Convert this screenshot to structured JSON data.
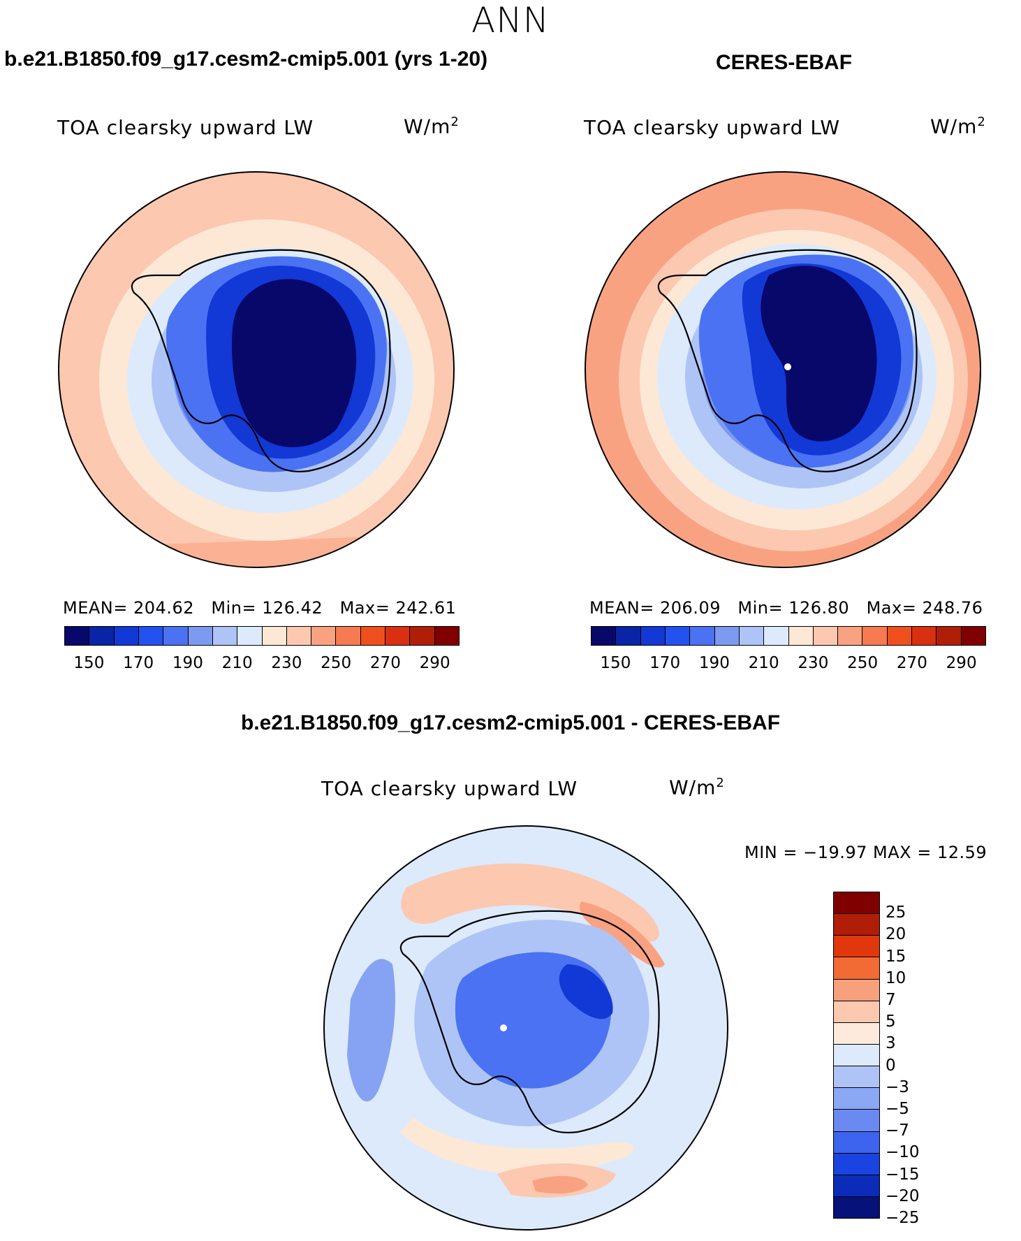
{
  "figure": {
    "season": "ANN"
  },
  "panels": {
    "model": {
      "case_title": "b.e21.B1850.f09_g17.cesm2-cmip5.001 (yrs 1-20)",
      "variable": "TOA clearsky upward LW",
      "units_base": "W/m",
      "units_exp": "2",
      "mean_label": "MEAN=",
      "mean": "204.62",
      "min_label": "Min=",
      "min": "126.42",
      "max_label": "Max=",
      "max": "242.61"
    },
    "obs": {
      "case_title": "CERES-EBAF",
      "variable": "TOA clearsky upward LW",
      "units_base": "W/m",
      "units_exp": "2",
      "mean_label": "MEAN=",
      "mean": "206.09",
      "min_label": "Min=",
      "min": "126.80",
      "max_label": "Max=",
      "max": "248.76"
    },
    "diff": {
      "case_title": "b.e21.B1850.f09_g17.cesm2-cmip5.001 - CERES-EBAF",
      "variable": "TOA clearsky upward LW",
      "units_base": "W/m",
      "units_exp": "2",
      "stats_text": "MIN = −19.97 MAX =   12.59"
    }
  },
  "colorbars": {
    "abs": {
      "colors": [
        "#08086b",
        "#0a24a8",
        "#1238d6",
        "#2452f0",
        "#4a72f2",
        "#7c9af2",
        "#aec4f6",
        "#dceafc",
        "#fde8d6",
        "#fcc8b0",
        "#f9a282",
        "#f77a52",
        "#f0501e",
        "#d83010",
        "#b01e08",
        "#800000"
      ],
      "tick_labels": [
        "150",
        "170",
        "190",
        "210",
        "230",
        "250",
        "270",
        "290"
      ]
    },
    "diff": {
      "colors": [
        "#800000",
        "#b01e08",
        "#e0380c",
        "#f26a34",
        "#f7a07c",
        "#fbc8b0",
        "#fdeadc",
        "#dceafc",
        "#aec4f6",
        "#8aa8f4",
        "#6a8af2",
        "#3c64ee",
        "#1a44e0",
        "#0a2cb8",
        "#06127a"
      ],
      "tick_labels": [
        "25",
        "20",
        "15",
        "10",
        "7",
        "5",
        "3",
        "0",
        "−3",
        "−5",
        "−7",
        "−10",
        "−15",
        "−20",
        "−25"
      ]
    }
  },
  "map_colors": {
    "ocean_warm": "#fcc8b0",
    "ocean_warm_light": "#fde8d6",
    "ocean_warm_strong": "#f9a282",
    "ring_light_blue": "#dceafc",
    "ring_mid_blue": "#aec4f6",
    "coast_blue": "#7c9af2",
    "ice_blue": "#4a72f2",
    "ice_deep": "#1238d6",
    "ice_core": "#08086b"
  }
}
